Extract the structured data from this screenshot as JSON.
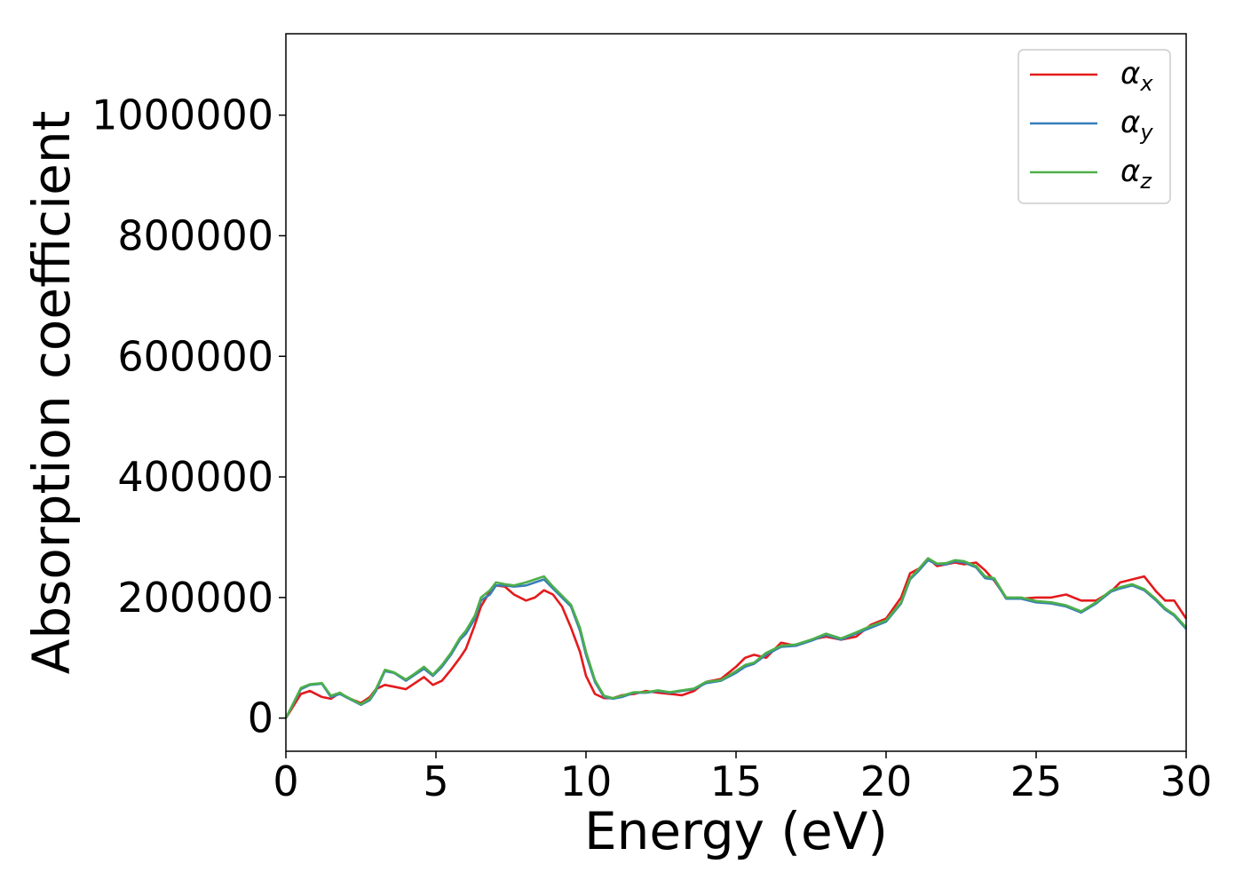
{
  "chart_data": {
    "type": "line",
    "xlabel": "Energy (eV)",
    "ylabel": "Absorption coefficient",
    "xlim": [
      0,
      30
    ],
    "ylim": [
      -55000,
      1135000
    ],
    "xticks": [
      "0",
      "5",
      "10",
      "15",
      "20",
      "25",
      "30"
    ],
    "xtick_values": [
      0,
      5,
      10,
      15,
      20,
      25,
      30
    ],
    "yticks": [
      "0",
      "200000",
      "400000",
      "600000",
      "800000",
      "1000000"
    ],
    "ytick_values": [
      0,
      200000,
      400000,
      600000,
      800000,
      1000000
    ],
    "grid": false,
    "legend_position": "top-right",
    "series": [
      {
        "name": "α",
        "subscript": "x",
        "color": "#e41a1c",
        "x": [
          0,
          0.5,
          0.8,
          1.2,
          1.5,
          1.8,
          2.0,
          2.5,
          2.8,
          3.0,
          3.3,
          3.6,
          4.0,
          4.3,
          4.6,
          4.9,
          5.2,
          5.5,
          5.8,
          6.0,
          6.3,
          6.5,
          6.8,
          7.0,
          7.3,
          7.6,
          8.0,
          8.3,
          8.6,
          8.9,
          9.2,
          9.5,
          9.8,
          10.0,
          10.3,
          10.6,
          10.9,
          11.2,
          11.6,
          12.0,
          12.4,
          12.8,
          13.2,
          13.6,
          14.0,
          14.5,
          15.0,
          15.3,
          15.6,
          16.0,
          16.5,
          17.0,
          17.5,
          18.0,
          18.5,
          19.0,
          19.5,
          20.0,
          20.5,
          20.8,
          21.1,
          21.4,
          21.7,
          22.0,
          22.3,
          22.6,
          23.0,
          23.3,
          23.6,
          24.0,
          24.5,
          25.0,
          25.5,
          26.0,
          26.5,
          27.0,
          27.5,
          27.8,
          28.2,
          28.6,
          29.0,
          29.3,
          29.6,
          30.0
        ],
        "y": [
          0,
          40000,
          45000,
          35000,
          32000,
          42000,
          35000,
          25000,
          35000,
          48000,
          55000,
          52000,
          48000,
          58000,
          68000,
          55000,
          62000,
          80000,
          100000,
          115000,
          155000,
          185000,
          210000,
          220000,
          218000,
          205000,
          195000,
          200000,
          212000,
          205000,
          185000,
          150000,
          110000,
          70000,
          40000,
          33000,
          33000,
          38000,
          40000,
          45000,
          42000,
          40000,
          38000,
          45000,
          60000,
          65000,
          85000,
          100000,
          105000,
          100000,
          125000,
          120000,
          130000,
          135000,
          130000,
          135000,
          155000,
          165000,
          200000,
          240000,
          248000,
          265000,
          252000,
          255000,
          258000,
          255000,
          258000,
          245000,
          228000,
          200000,
          198000,
          200000,
          200000,
          205000,
          195000,
          195000,
          210000,
          225000,
          230000,
          235000,
          210000,
          195000,
          195000,
          165000
        ]
      },
      {
        "name": "α",
        "subscript": "y",
        "color": "#377eb8",
        "x": [
          0,
          0.5,
          0.8,
          1.2,
          1.5,
          1.8,
          2.0,
          2.5,
          2.8,
          3.0,
          3.3,
          3.6,
          4.0,
          4.3,
          4.6,
          4.9,
          5.2,
          5.5,
          5.8,
          6.0,
          6.3,
          6.5,
          6.8,
          7.0,
          7.3,
          7.6,
          8.0,
          8.3,
          8.6,
          8.9,
          9.2,
          9.5,
          9.8,
          10.0,
          10.3,
          10.6,
          10.9,
          11.2,
          11.6,
          12.0,
          12.4,
          12.8,
          13.2,
          13.6,
          14.0,
          14.5,
          15.0,
          15.3,
          15.6,
          16.0,
          16.5,
          17.0,
          17.5,
          18.0,
          18.5,
          19.0,
          19.5,
          20.0,
          20.5,
          20.8,
          21.1,
          21.4,
          21.7,
          22.0,
          22.3,
          22.6,
          23.0,
          23.3,
          23.6,
          24.0,
          24.5,
          25.0,
          25.5,
          26.0,
          26.5,
          27.0,
          27.5,
          27.8,
          28.2,
          28.6,
          29.0,
          29.3,
          29.6,
          30.0
        ],
        "y": [
          0,
          48000,
          55000,
          57000,
          35000,
          40000,
          35000,
          22000,
          30000,
          45000,
          78000,
          75000,
          62000,
          72000,
          82000,
          70000,
          85000,
          105000,
          130000,
          140000,
          165000,
          195000,
          205000,
          220000,
          220000,
          218000,
          220000,
          225000,
          230000,
          215000,
          200000,
          185000,
          145000,
          105000,
          60000,
          35000,
          32000,
          35000,
          42000,
          42000,
          45000,
          42000,
          45000,
          48000,
          58000,
          62000,
          75000,
          85000,
          90000,
          105000,
          118000,
          120000,
          128000,
          138000,
          130000,
          140000,
          150000,
          160000,
          190000,
          230000,
          245000,
          262000,
          255000,
          255000,
          260000,
          258000,
          250000,
          232000,
          230000,
          198000,
          198000,
          192000,
          190000,
          185000,
          175000,
          190000,
          210000,
          215000,
          220000,
          212000,
          195000,
          180000,
          170000,
          148000
        ]
      },
      {
        "name": "α",
        "subscript": "z",
        "color": "#4daf4a",
        "x": [
          0,
          0.5,
          0.8,
          1.2,
          1.5,
          1.8,
          2.0,
          2.5,
          2.8,
          3.0,
          3.3,
          3.6,
          4.0,
          4.3,
          4.6,
          4.9,
          5.2,
          5.5,
          5.8,
          6.0,
          6.3,
          6.5,
          6.8,
          7.0,
          7.3,
          7.6,
          8.0,
          8.3,
          8.6,
          8.9,
          9.2,
          9.5,
          9.8,
          10.0,
          10.3,
          10.6,
          10.9,
          11.2,
          11.6,
          12.0,
          12.4,
          12.8,
          13.2,
          13.6,
          14.0,
          14.5,
          15.0,
          15.3,
          15.6,
          16.0,
          16.5,
          17.0,
          17.5,
          18.0,
          18.5,
          19.0,
          19.5,
          20.0,
          20.5,
          20.8,
          21.1,
          21.4,
          21.7,
          22.0,
          22.3,
          22.6,
          23.0,
          23.3,
          23.6,
          24.0,
          24.5,
          25.0,
          25.5,
          26.0,
          26.5,
          27.0,
          27.5,
          27.8,
          28.2,
          28.6,
          29.0,
          29.3,
          29.6,
          30.0
        ],
        "y": [
          0,
          50000,
          56000,
          58000,
          37000,
          42000,
          36000,
          23000,
          32000,
          48000,
          80000,
          76000,
          64000,
          74000,
          85000,
          72000,
          88000,
          108000,
          133000,
          145000,
          170000,
          200000,
          212000,
          225000,
          222000,
          220000,
          225000,
          230000,
          235000,
          218000,
          203000,
          188000,
          150000,
          110000,
          63000,
          37000,
          33000,
          37000,
          43000,
          43000,
          46000,
          43000,
          46000,
          49000,
          60000,
          63000,
          78000,
          88000,
          92000,
          108000,
          120000,
          122000,
          130000,
          140000,
          132000,
          142000,
          153000,
          162000,
          192000,
          232000,
          248000,
          265000,
          256000,
          257000,
          262000,
          260000,
          252000,
          235000,
          232000,
          200000,
          200000,
          194000,
          192000,
          187000,
          177000,
          192000,
          212000,
          217000,
          222000,
          214000,
          197000,
          182000,
          172000,
          150000
        ]
      }
    ]
  }
}
